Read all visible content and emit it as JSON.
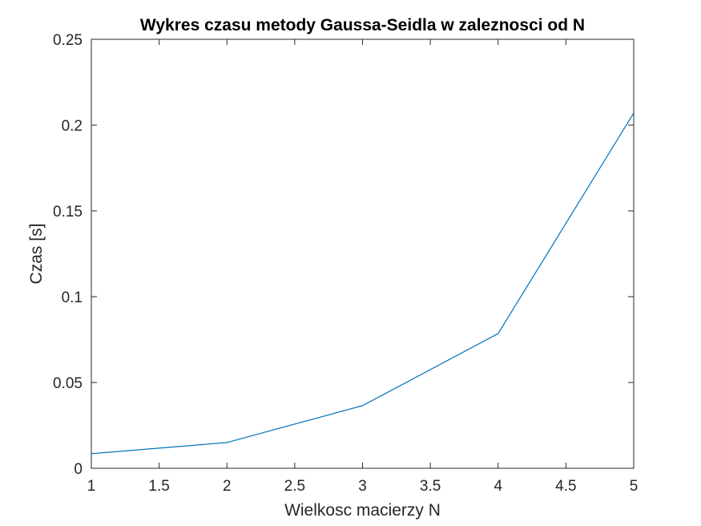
{
  "chart_data": {
    "type": "line",
    "title": "Wykres czasu metody Gaussa-Seidla w zaleznosci od N",
    "xlabel": "Wielkosc macierzy N",
    "ylabel": "Czas [s]",
    "xlim": [
      1,
      5
    ],
    "ylim": [
      0,
      0.25
    ],
    "xticks": [
      1,
      1.5,
      2,
      2.5,
      3,
      3.5,
      4,
      4.5,
      5
    ],
    "xtick_labels": [
      "1",
      "1.5",
      "2",
      "2.5",
      "3",
      "3.5",
      "4",
      "4.5",
      "5"
    ],
    "yticks": [
      0,
      0.05,
      0.1,
      0.15,
      0.2,
      0.25
    ],
    "ytick_labels": [
      "0",
      "0.05",
      "0.1",
      "0.15",
      "0.2",
      "0.25"
    ],
    "grid": false,
    "series": [
      {
        "x": [
          1,
          2,
          3,
          4,
          5
        ],
        "y": [
          0.0085,
          0.015,
          0.0365,
          0.0785,
          0.207
        ],
        "color": "#0072BD"
      }
    ]
  }
}
